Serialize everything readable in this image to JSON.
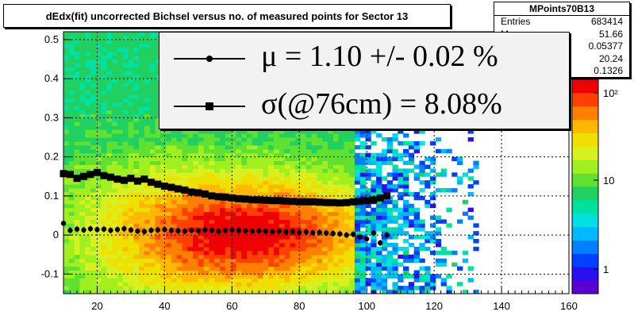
{
  "title": "dEdx(fit) uncorrected Bichsel versus no. of measured points for Sector 13",
  "stats": {
    "name": "MPoints70B13",
    "rows": [
      {
        "label": "Entries",
        "value": "683414"
      },
      {
        "label": "Mean",
        "value": "51.66"
      },
      {
        "label": "Mean y",
        "value": "0.05377"
      },
      {
        "label": "RMS",
        "value": "20.24"
      },
      {
        "label": "RMS y",
        "value": "0.1326"
      }
    ]
  },
  "legend": {
    "mu": "μ  =  1.10 +/-  0.02 %",
    "sigma": "σ(@76cm) =  8.08%"
  },
  "colors": {
    "frame_bg": "#ffffff",
    "legend_bg": "#f2f2f2",
    "marker": "#000000"
  },
  "chart_data": {
    "type": "heatmap",
    "title": "dEdx(fit) uncorrected Bichsel versus no. of measured points for Sector 13",
    "xlim": [
      10,
      160
    ],
    "ylim": [
      -0.15,
      0.52
    ],
    "x_ticks": [
      20,
      40,
      60,
      80,
      100,
      120,
      140,
      160
    ],
    "y_ticks": [
      -0.1,
      0,
      0.1,
      0.2,
      0.3,
      0.4,
      0.5
    ],
    "z_scale": "log",
    "z_ticks": [
      "1",
      "10",
      "10²"
    ],
    "grid": true,
    "legend_position": "top-right",
    "density_center": [
      62,
      0.0
    ],
    "overlay_series": [
      {
        "marker": "circle",
        "x": [
          10,
          12,
          14,
          16,
          18,
          20,
          22,
          24,
          26,
          28,
          30,
          32,
          34,
          36,
          38,
          40,
          42,
          44,
          46,
          48,
          50,
          52,
          54,
          56,
          58,
          60,
          62,
          64,
          66,
          68,
          70,
          72,
          74,
          76,
          78,
          80,
          82,
          84,
          86,
          88,
          90,
          92,
          94,
          96,
          98,
          100,
          102,
          104,
          106
        ],
        "y": [
          0.03,
          0.012,
          0.015,
          0.013,
          0.016,
          0.014,
          0.015,
          0.012,
          0.014,
          0.016,
          0.013,
          0.01,
          0.009,
          0.012,
          0.013,
          0.014,
          0.012,
          0.011,
          0.01,
          0.012,
          0.011,
          0.013,
          0.012,
          0.01,
          0.012,
          0.013,
          0.012,
          0.011,
          0.01,
          0.011,
          0.01,
          0.009,
          0.01,
          0.008,
          0.009,
          0.007,
          0.008,
          0.006,
          0.007,
          0.005,
          0.004,
          0.003,
          0.0,
          0.002,
          -0.005,
          -0.01,
          0.005,
          -0.02,
          0.0
        ]
      },
      {
        "marker": "square",
        "x": [
          10,
          12,
          14,
          16,
          18,
          20,
          22,
          24,
          26,
          28,
          30,
          32,
          34,
          36,
          38,
          40,
          42,
          44,
          46,
          48,
          50,
          52,
          54,
          56,
          58,
          60,
          62,
          64,
          66,
          68,
          70,
          72,
          74,
          76,
          78,
          80,
          82,
          84,
          86,
          88,
          90,
          92,
          94,
          96,
          98,
          100,
          102,
          104,
          106
        ],
        "y": [
          0.157,
          0.155,
          0.145,
          0.15,
          0.155,
          0.16,
          0.152,
          0.148,
          0.143,
          0.14,
          0.145,
          0.138,
          0.143,
          0.135,
          0.13,
          0.125,
          0.122,
          0.118,
          0.115,
          0.11,
          0.108,
          0.105,
          0.1,
          0.098,
          0.097,
          0.095,
          0.093,
          0.092,
          0.09,
          0.09,
          0.089,
          0.088,
          0.088,
          0.087,
          0.086,
          0.085,
          0.085,
          0.085,
          0.084,
          0.083,
          0.083,
          0.082,
          0.083,
          0.085,
          0.086,
          0.088,
          0.09,
          0.095,
          0.1
        ]
      }
    ]
  }
}
